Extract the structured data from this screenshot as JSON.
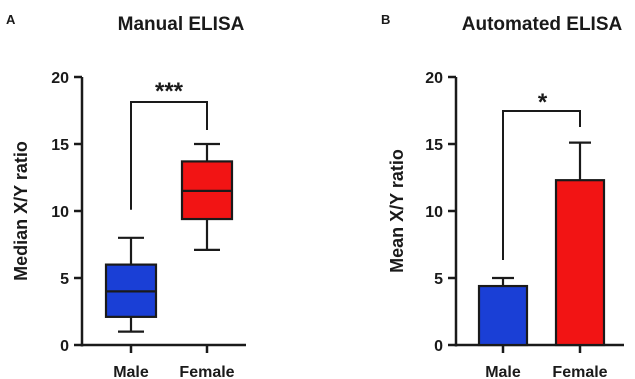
{
  "panels": [
    {
      "letter": "A",
      "title": "Manual ELISA",
      "ylabel": "Median X/Y ratio",
      "yticks": [
        "0",
        "5",
        "10",
        "15",
        "20"
      ],
      "significance": "***"
    },
    {
      "letter": "B",
      "title": "Automated ELISA",
      "ylabel": "Mean X/Y ratio",
      "yticks": [
        "0",
        "5",
        "10",
        "15",
        "20"
      ],
      "significance": "*"
    }
  ],
  "chart_data": [
    {
      "type": "box",
      "title": "Manual ELISA",
      "xlabel": "",
      "ylabel": "Median X/Y ratio",
      "ylim": [
        0,
        20
      ],
      "yticks": [
        0,
        5,
        10,
        15,
        20
      ],
      "categories": [
        "Male",
        "Female"
      ],
      "boxes": [
        {
          "category": "Male",
          "min": 1,
          "q1": 2.1,
          "median": 4.0,
          "q3": 6.0,
          "max": 8.0,
          "color": "#1a3fd6"
        },
        {
          "category": "Female",
          "min": 7.1,
          "q1": 9.4,
          "median": 11.5,
          "q3": 13.7,
          "max": 15.0,
          "color": "#f21414"
        }
      ],
      "significance": "***",
      "grid": false,
      "legend": "none"
    },
    {
      "type": "bar",
      "title": "Automated ELISA",
      "xlabel": "",
      "ylabel": "Mean X/Y ratio",
      "ylim": [
        0,
        20
      ],
      "yticks": [
        0,
        5,
        10,
        15,
        20
      ],
      "categories": [
        "Male",
        "Female"
      ],
      "values": [
        4.4,
        12.3
      ],
      "errors": [
        0.6,
        2.8
      ],
      "colors": [
        "#1a3fd6",
        "#f21414"
      ],
      "significance": "*",
      "grid": false,
      "legend": "none"
    }
  ]
}
